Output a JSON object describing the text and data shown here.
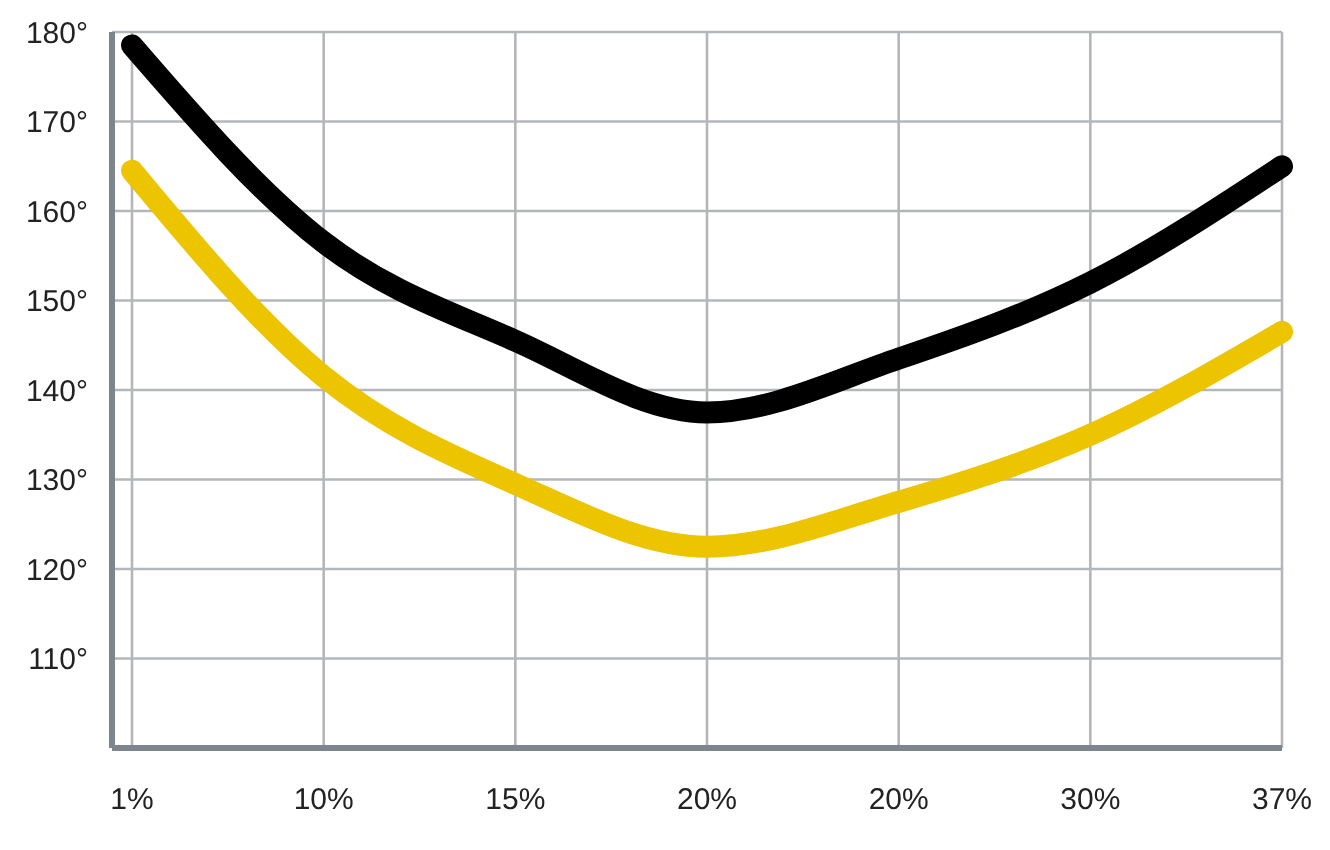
{
  "chart_data": {
    "type": "line",
    "categories": [
      "1%",
      "10%",
      "15%",
      "20%",
      "20%",
      "30%",
      "37%"
    ],
    "series": [
      {
        "color": "#000000",
        "values": [
          178.5,
          156.5,
          145.5,
          137.5,
          143.5,
          152,
          165
        ]
      },
      {
        "color": "#ecc400",
        "values": [
          164.5,
          141.5,
          129.5,
          122.5,
          127.5,
          135,
          146.5
        ]
      }
    ],
    "ylim": [
      100,
      180
    ],
    "yticks": [
      {
        "value": 110,
        "label": "110°"
      },
      {
        "value": 120,
        "label": "120°"
      },
      {
        "value": 130,
        "label": "130°"
      },
      {
        "value": 140,
        "label": "140°"
      },
      {
        "value": 150,
        "label": "150°"
      },
      {
        "value": 160,
        "label": "160°"
      },
      {
        "value": 170,
        "label": "170°"
      },
      {
        "value": 180,
        "label": "180°"
      }
    ],
    "grid": true,
    "line_style": "solid"
  }
}
